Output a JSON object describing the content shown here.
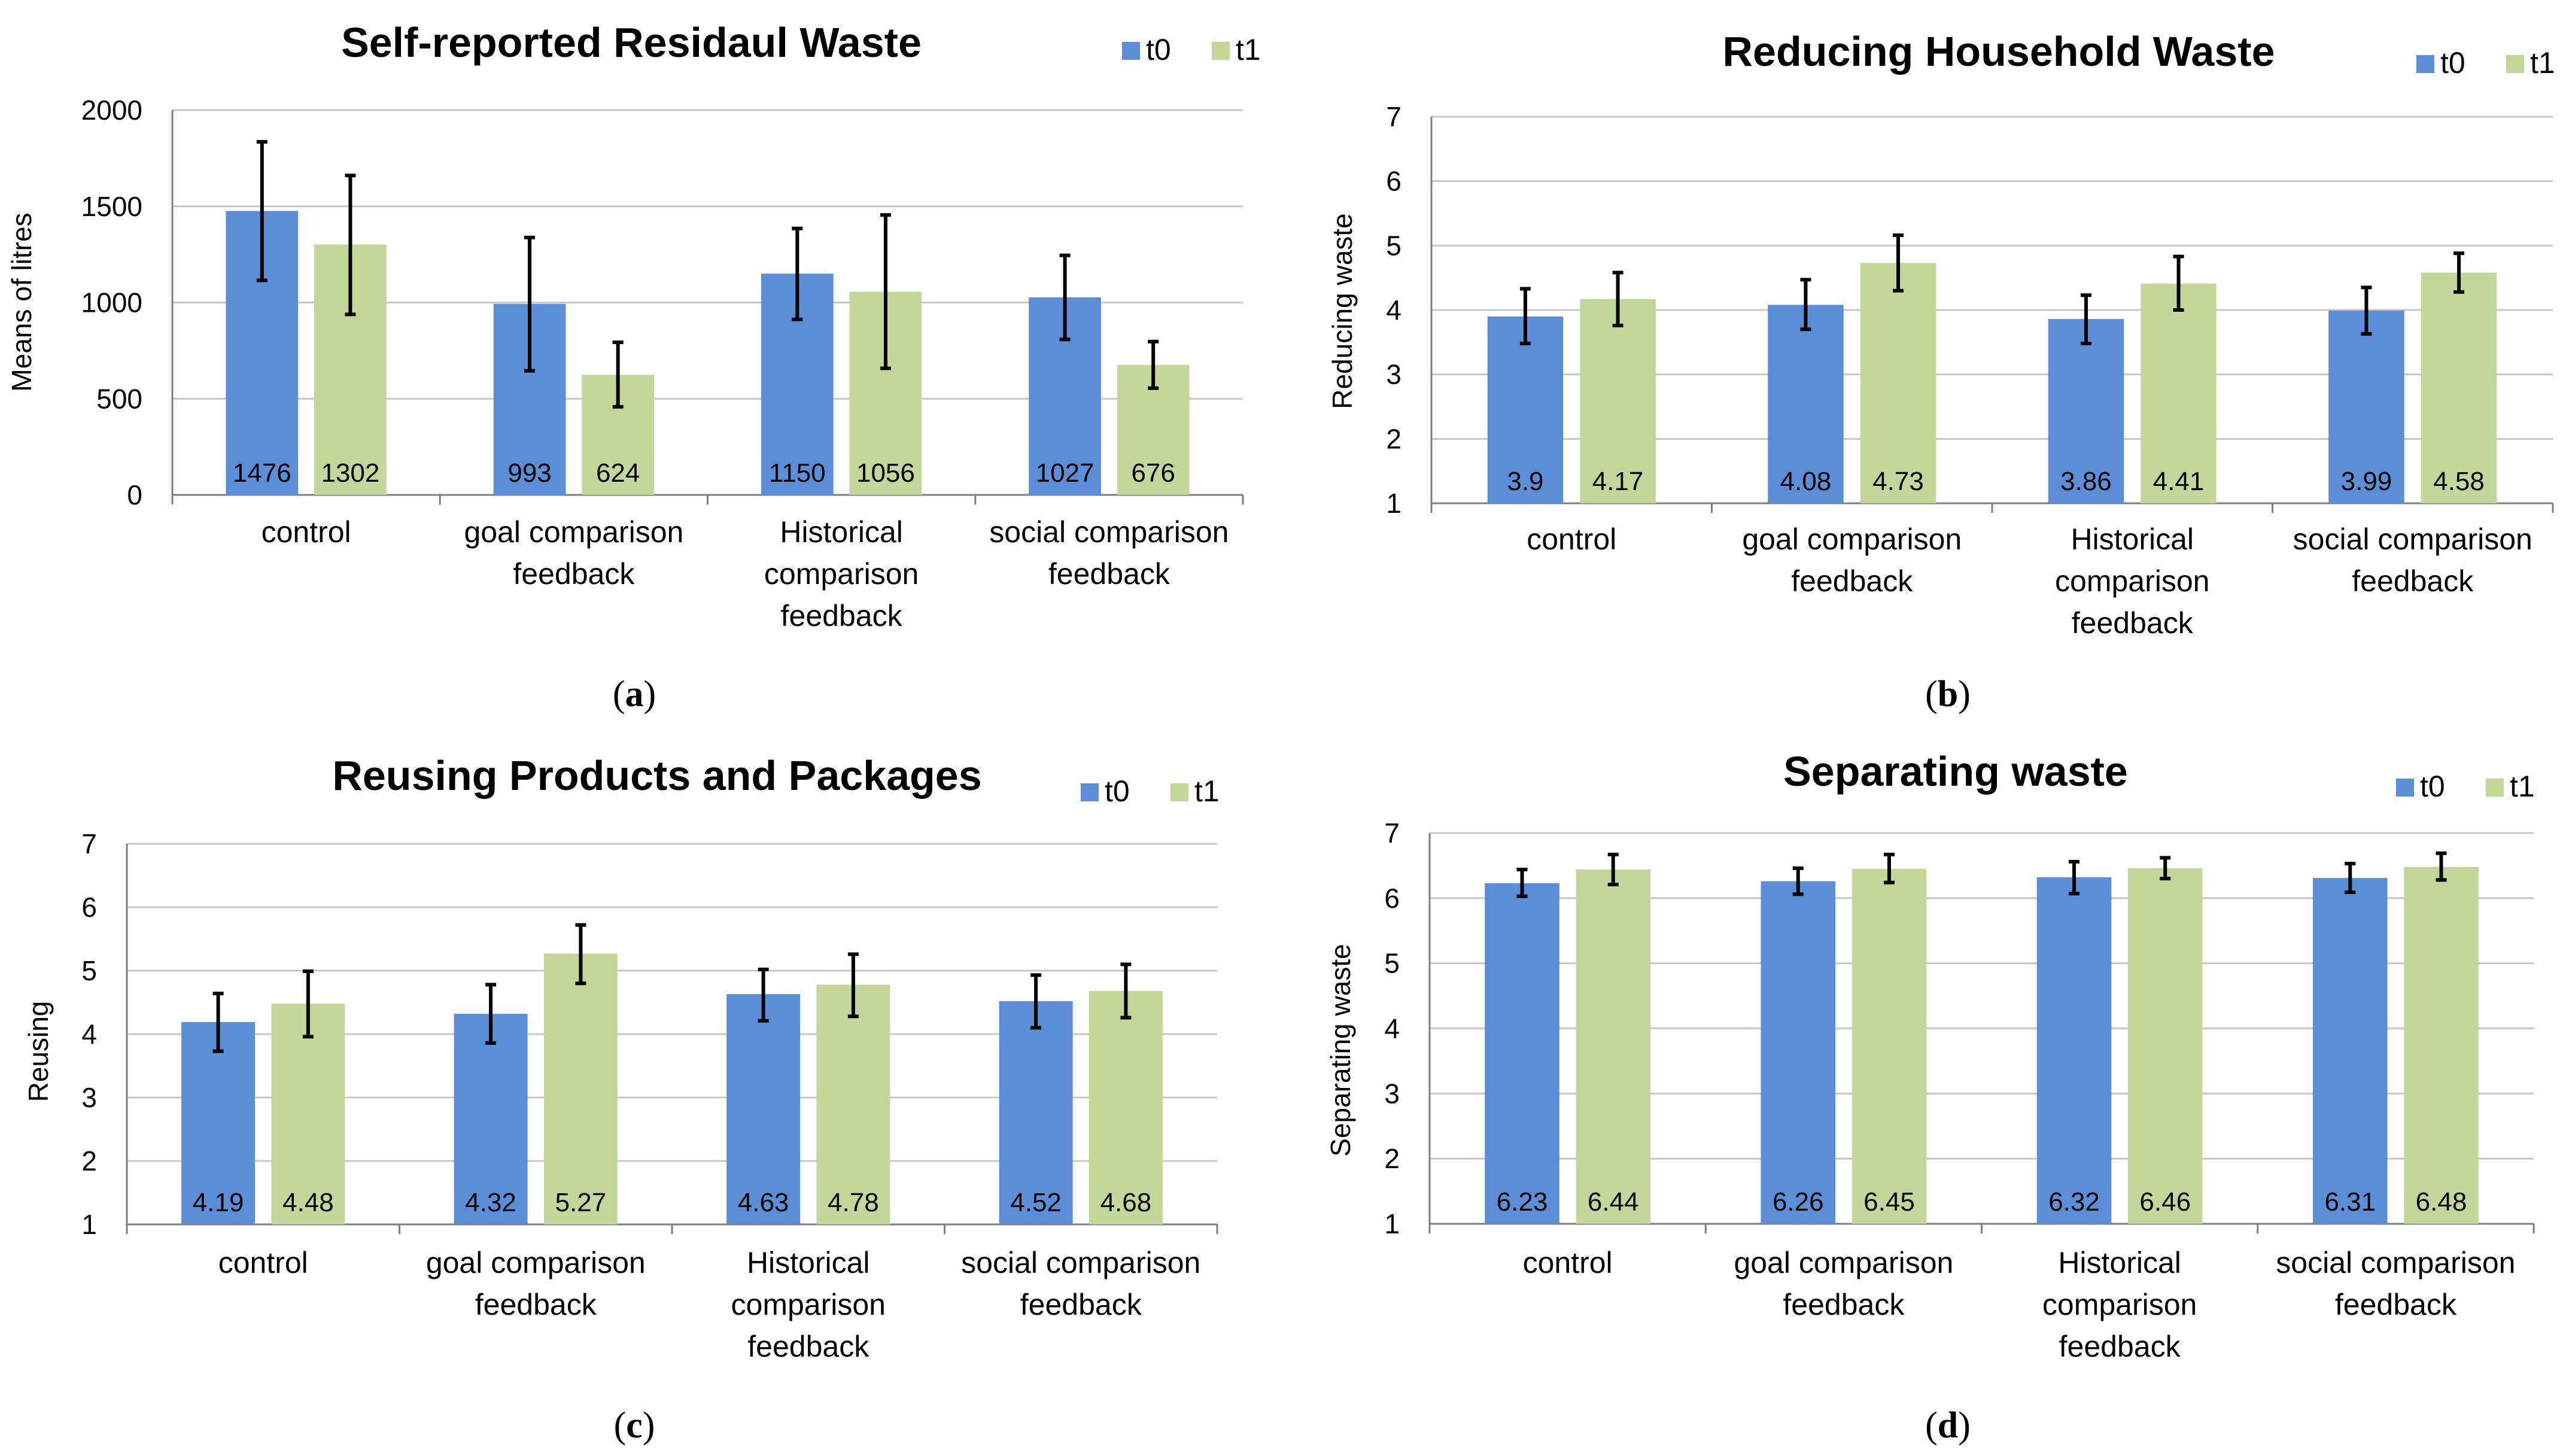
{
  "chart_data": [
    {
      "type": "bar",
      "title": "Self-reported Residaul Waste",
      "xlabel": "",
      "ylabel": "Means of litres",
      "ylim": [
        0,
        2000
      ],
      "yticks": [
        0,
        500,
        1000,
        1500,
        2000
      ],
      "grid": true,
      "legend": "top-right",
      "categories": [
        [
          "control"
        ],
        [
          "goal comparison",
          "feedback"
        ],
        [
          "Historical",
          "comparison",
          "feedback"
        ],
        [
          "social comparison",
          "feedback"
        ]
      ],
      "series": [
        {
          "name": "t0",
          "color": "#5B8ED6",
          "values": [
            1476,
            993,
            1150,
            1027
          ],
          "labels": [
            "1476",
            "993",
            "1150",
            "1027"
          ],
          "err_low": [
            1115,
            645,
            912,
            808
          ],
          "err_high": [
            1835,
            1338,
            1385,
            1245
          ]
        },
        {
          "name": "t1",
          "color": "#C3D79B",
          "values": [
            1302,
            624,
            1056,
            676
          ],
          "labels": [
            "1302",
            "624",
            "1056",
            "676"
          ],
          "err_low": [
            938,
            458,
            658,
            555
          ],
          "err_high": [
            1660,
            793,
            1455,
            797
          ]
        }
      ],
      "caption_letter": "a"
    },
    {
      "type": "bar",
      "title": "Reducing Household Waste",
      "xlabel": "",
      "ylabel": "Reducing waste",
      "ylim": [
        1,
        7
      ],
      "yticks": [
        1,
        2,
        3,
        4,
        5,
        6,
        7
      ],
      "grid": true,
      "legend": "top-right",
      "categories": [
        [
          "control"
        ],
        [
          "goal comparison",
          "feedback"
        ],
        [
          "Historical",
          "comparison",
          "feedback"
        ],
        [
          "social comparison",
          "feedback"
        ]
      ],
      "series": [
        {
          "name": "t0",
          "color": "#5B8ED6",
          "values": [
            3.9,
            4.08,
            3.86,
            3.99
          ],
          "labels": [
            "3.9",
            "4.08",
            "3.86",
            "3.99"
          ],
          "err_low": [
            3.48,
            3.7,
            3.48,
            3.63
          ],
          "err_high": [
            4.33,
            4.47,
            4.23,
            4.35
          ]
        },
        {
          "name": "t1",
          "color": "#C3D79B",
          "values": [
            4.17,
            4.73,
            4.41,
            4.58
          ],
          "labels": [
            "4.17",
            "4.73",
            "4.41",
            "4.58"
          ],
          "err_low": [
            3.76,
            4.3,
            4.0,
            4.28
          ],
          "err_high": [
            4.58,
            5.16,
            4.83,
            4.88
          ]
        }
      ],
      "caption_letter": "b"
    },
    {
      "type": "bar",
      "title": "Reusing Products and Packages",
      "xlabel": "",
      "ylabel": "Reusing",
      "ylim": [
        1,
        7
      ],
      "yticks": [
        1,
        2,
        3,
        4,
        5,
        6,
        7
      ],
      "grid": true,
      "legend": "top-right",
      "categories": [
        [
          "control"
        ],
        [
          "goal comparison",
          "feedback"
        ],
        [
          "Historical",
          "comparison",
          "feedback"
        ],
        [
          "social comparison",
          "feedback"
        ]
      ],
      "series": [
        {
          "name": "t0",
          "color": "#5B8ED6",
          "values": [
            4.19,
            4.32,
            4.63,
            4.52
          ],
          "labels": [
            "4.19",
            "4.32",
            "4.63",
            "4.52"
          ],
          "err_low": [
            3.73,
            3.86,
            4.21,
            4.1
          ],
          "err_high": [
            4.64,
            4.78,
            5.02,
            4.93
          ]
        },
        {
          "name": "t1",
          "color": "#C3D79B",
          "values": [
            4.48,
            5.27,
            4.78,
            4.68
          ],
          "labels": [
            "4.48",
            "5.27",
            "4.78",
            "4.68"
          ],
          "err_low": [
            3.96,
            4.8,
            4.28,
            4.26
          ],
          "err_high": [
            4.99,
            5.72,
            5.26,
            5.1
          ]
        }
      ],
      "caption_letter": "c"
    },
    {
      "type": "bar",
      "title": "Separating waste",
      "xlabel": "",
      "ylabel": "Separating waste",
      "ylim": [
        1,
        7
      ],
      "yticks": [
        1,
        2,
        3,
        4,
        5,
        6,
        7
      ],
      "grid": true,
      "legend": "top-right",
      "categories": [
        [
          "control"
        ],
        [
          "goal comparison",
          "feedback"
        ],
        [
          "Historical",
          "comparison",
          "feedback"
        ],
        [
          "social comparison",
          "feedback"
        ]
      ],
      "series": [
        {
          "name": "t0",
          "color": "#5B8ED6",
          "values": [
            6.23,
            6.26,
            6.32,
            6.31
          ],
          "labels": [
            "6.23",
            "6.26",
            "6.32",
            "6.31"
          ],
          "err_low": [
            6.03,
            6.06,
            6.07,
            6.09
          ],
          "err_high": [
            6.44,
            6.46,
            6.56,
            6.53
          ]
        },
        {
          "name": "t1",
          "color": "#C3D79B",
          "values": [
            6.44,
            6.45,
            6.46,
            6.48
          ],
          "labels": [
            "6.44",
            "6.45",
            "6.46",
            "6.48"
          ],
          "err_low": [
            6.21,
            6.24,
            6.3,
            6.28
          ],
          "err_high": [
            6.67,
            6.67,
            6.62,
            6.69
          ]
        }
      ],
      "caption_letter": "d"
    }
  ]
}
